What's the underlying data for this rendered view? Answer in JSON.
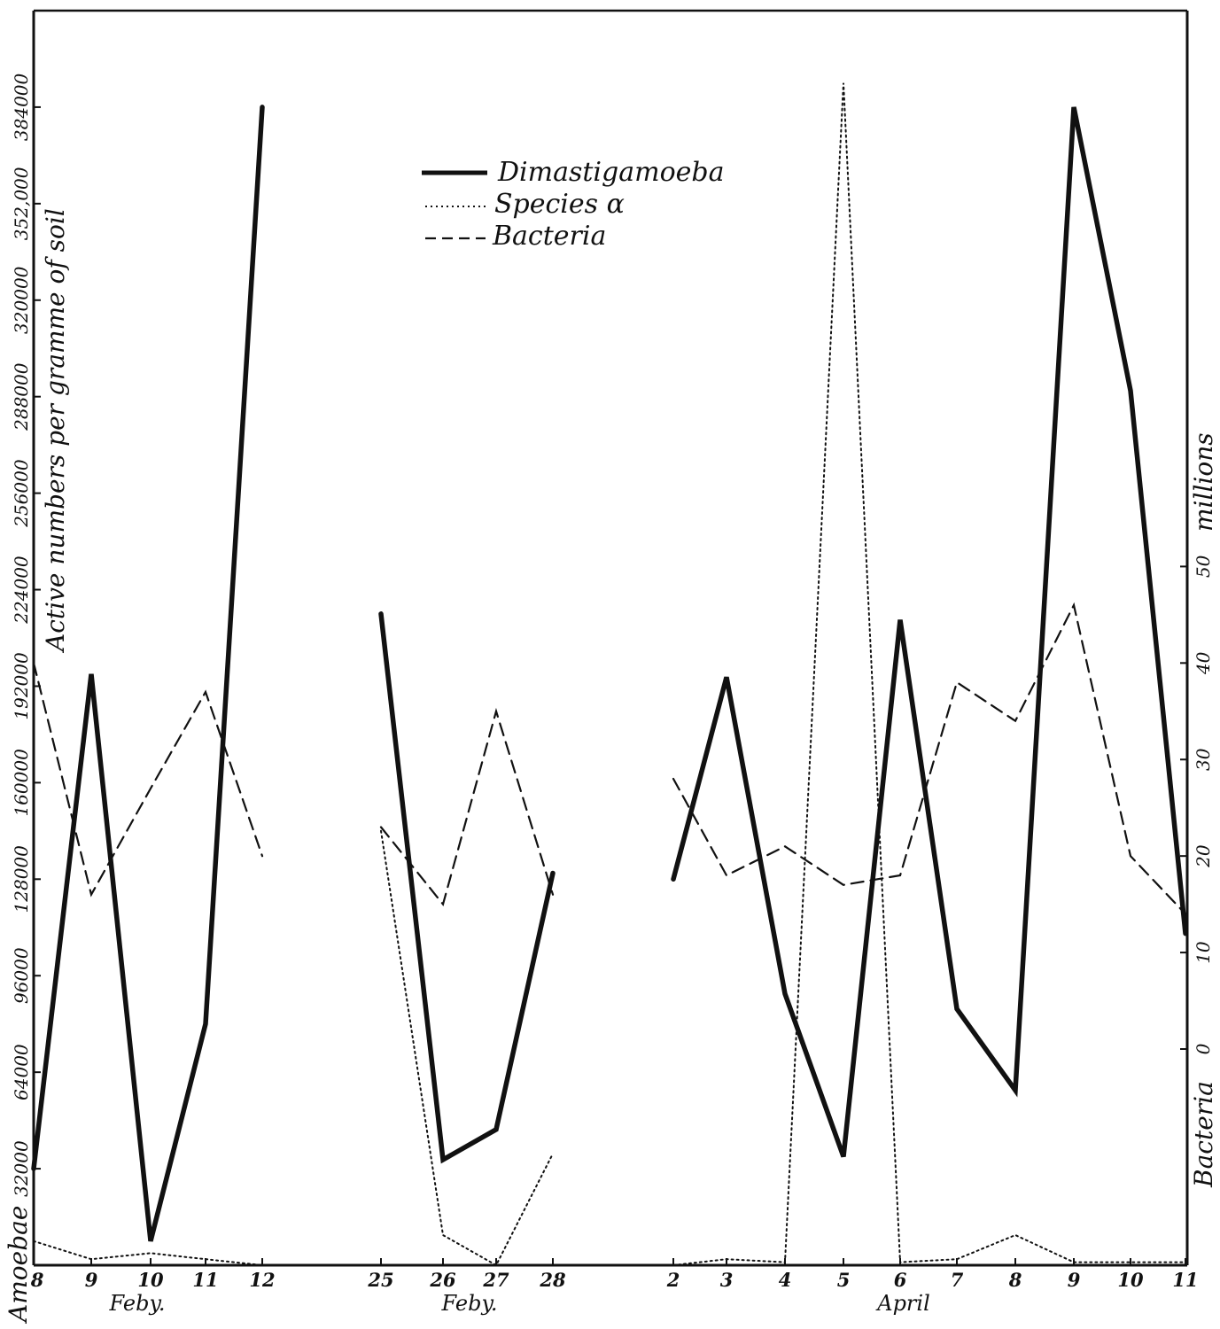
{
  "chart_data": {
    "type": "line",
    "left_axis": {
      "title": "Active numbers per gramme of soil",
      "ticks": [
        "32000",
        "64000",
        "96000",
        "128000",
        "160000",
        "192000",
        "224000",
        "256000",
        "288000",
        "320000",
        "352000",
        "384000"
      ],
      "ticks_display": [
        "32000",
        "64000",
        "96000",
        "128000",
        "160000",
        "192000",
        "224000",
        "256000",
        "288000",
        "320000",
        "352,000",
        "384000"
      ],
      "ylim": [
        0,
        416000
      ]
    },
    "left_axis_prefix": "Amoebae",
    "right_axis": {
      "label": "millions",
      "ticks": [
        0,
        10,
        20,
        30,
        40,
        50
      ],
      "ylim": [
        -22.4,
        107.6
      ]
    },
    "right_axis_prefix": "Bacteria",
    "groups": [
      {
        "month": "Feby.",
        "dates": [
          "8",
          "9",
          "10",
          "11",
          "12"
        ]
      },
      {
        "month": "Feby.",
        "dates": [
          "25",
          "26",
          "27",
          "28"
        ]
      },
      {
        "month": "April",
        "dates": [
          "2",
          "3",
          "4",
          "5",
          "6",
          "7",
          "8",
          "9",
          "10",
          "11"
        ]
      }
    ],
    "legend": [
      {
        "name": "Dimastigamoeba",
        "style": "solid"
      },
      {
        "name": "Species α",
        "style": "dotted"
      },
      {
        "name": "Bacteria",
        "style": "dashed"
      }
    ],
    "series": [
      {
        "name": "Dimastigamoeba",
        "axis": "left",
        "values": [
          [
            32000,
            196000,
            8000,
            80000,
            384000
          ],
          [
            216000,
            35000,
            45000,
            130000
          ],
          [
            128000,
            195000,
            90000,
            36000,
            214000,
            85000,
            58000,
            384000,
            290000,
            110000
          ]
        ]
      },
      {
        "name": "Species α",
        "axis": "left",
        "values": [
          [
            8000,
            2000,
            4000,
            2000,
            0
          ],
          [
            144000,
            10000,
            0,
            37000
          ],
          [
            0,
            2000,
            1000,
            392000,
            1000,
            2000,
            10000,
            1000,
            1000,
            1000
          ]
        ]
      },
      {
        "name": "Bacteria",
        "axis": "right",
        "values": [
          [
            40,
            16,
            27,
            37,
            20
          ],
          [
            23,
            15,
            35,
            16
          ],
          [
            28,
            18,
            21,
            17,
            18,
            38,
            34,
            46,
            20,
            14
          ]
        ]
      }
    ]
  }
}
